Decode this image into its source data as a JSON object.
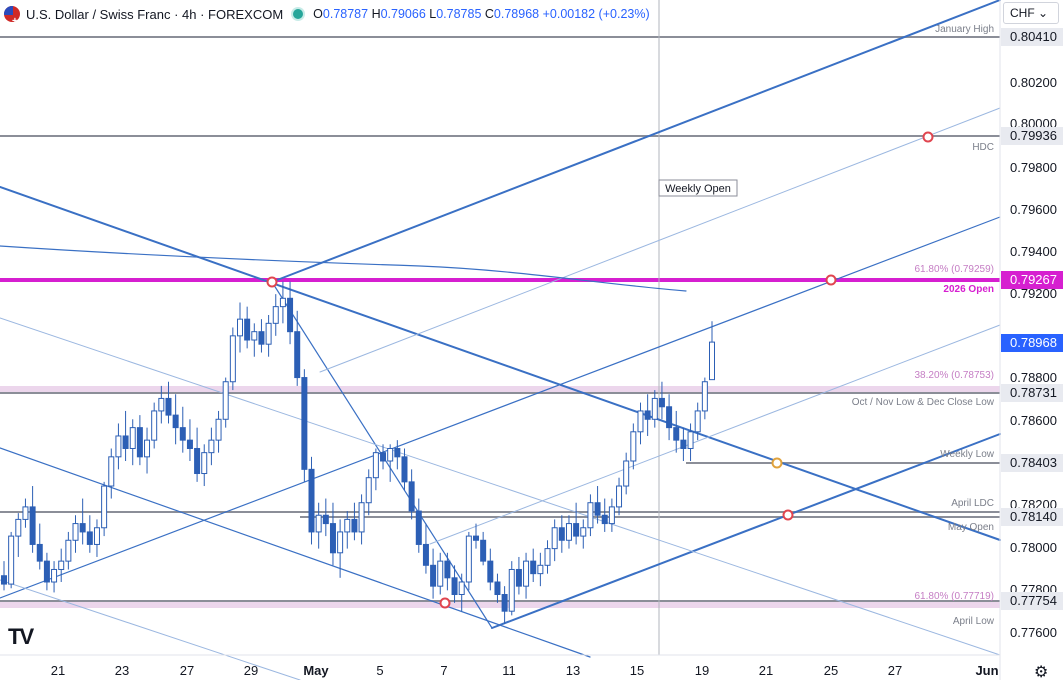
{
  "header": {
    "symbol": "U.S. Dollar / Swiss Franc · 4h · FOREXCOM",
    "ohlc": [
      {
        "k": "O",
        "v": "0.78787"
      },
      {
        "k": "H",
        "v": "0.79066"
      },
      {
        "k": "L",
        "v": "0.78785"
      },
      {
        "k": "C",
        "v": "0.78968"
      }
    ],
    "change": "+0.00182 (+0.23%)"
  },
  "currency_button": "CHF",
  "colors": {
    "candle": "#2c5fb5",
    "trend_line": "#3a70c4",
    "trend_line_light": "#9bb7e0",
    "level_line": "#8b8e98",
    "magenta": "#d61fd0",
    "fib_band": "#ecd6ec",
    "fib_text": "#c57ec4",
    "label_text": "#7b7f8a",
    "red_marker": "#e0454f",
    "orange_marker": "#e0a23c",
    "current_price_bg": "#2962ff"
  },
  "chart_data": {
    "type": "candlestick",
    "title": "U.S. Dollar / Swiss Franc · 4h · FOREXCOM",
    "y_axis_ticks": [
      "0.80200",
      "0.80000",
      "0.79800",
      "0.79600",
      "0.79400",
      "0.79200",
      "0.78800",
      "0.78600",
      "0.78200",
      "0.78000",
      "0.77800",
      "0.77600"
    ],
    "y_range": [
      0.7747,
      0.8061
    ],
    "x_axis_labels": [
      "21",
      "23",
      "27",
      "29",
      "May",
      "5",
      "7",
      "11",
      "13",
      "15",
      "19",
      "21",
      "25",
      "27",
      "Jun"
    ],
    "weekly_open_label": "Weekly Open",
    "levels": [
      {
        "name": "January High",
        "price": "0.80410",
        "style": "gray"
      },
      {
        "name": "HDC",
        "price": "0.79936",
        "style": "gray"
      },
      {
        "name": "2026 Open",
        "price": "0.79267",
        "style": "magenta"
      },
      {
        "name": "61.80% (0.79259)",
        "price": "",
        "style": "fib-text"
      },
      {
        "name": "38.20% (0.78753)",
        "price": "",
        "style": "fib-band"
      },
      {
        "name": "Oct / Nov Low & Dec Close Low",
        "price": "0.78731",
        "style": "gray"
      },
      {
        "name": "Weekly Low",
        "price": "0.78403",
        "style": "gray"
      },
      {
        "name": "April LDC",
        "price": "",
        "style": "gray"
      },
      {
        "name": "May Open",
        "price": "0.78140",
        "style": "gray"
      },
      {
        "name": "61.80% (0.77719)",
        "price": "",
        "style": "fib-band"
      },
      {
        "name": "April Low",
        "price": "0.77754",
        "style": "gray"
      }
    ],
    "current_price": "0.78968",
    "candles": [
      [
        0.7785,
        0.7792,
        0.7778,
        0.7781
      ],
      [
        0.7781,
        0.7806,
        0.7779,
        0.7804
      ],
      [
        0.7804,
        0.7815,
        0.7794,
        0.7812
      ],
      [
        0.7812,
        0.7822,
        0.7808,
        0.7818
      ],
      [
        0.7818,
        0.7828,
        0.7796,
        0.78
      ],
      [
        0.78,
        0.781,
        0.7788,
        0.7792
      ],
      [
        0.7792,
        0.7796,
        0.7778,
        0.7782
      ],
      [
        0.7782,
        0.7792,
        0.7777,
        0.7788
      ],
      [
        0.7788,
        0.7798,
        0.7782,
        0.7792
      ],
      [
        0.7792,
        0.7806,
        0.7788,
        0.7802
      ],
      [
        0.7802,
        0.7814,
        0.7796,
        0.781
      ],
      [
        0.781,
        0.7822,
        0.78,
        0.7806
      ],
      [
        0.7806,
        0.7814,
        0.7796,
        0.78
      ],
      [
        0.78,
        0.7812,
        0.7794,
        0.7808
      ],
      [
        0.7808,
        0.783,
        0.7804,
        0.7828
      ],
      [
        0.7828,
        0.7846,
        0.7822,
        0.7842
      ],
      [
        0.7842,
        0.7858,
        0.7836,
        0.7852
      ],
      [
        0.7852,
        0.7864,
        0.784,
        0.7846
      ],
      [
        0.7846,
        0.786,
        0.7838,
        0.7856
      ],
      [
        0.7856,
        0.7862,
        0.7838,
        0.7842
      ],
      [
        0.7842,
        0.7856,
        0.7834,
        0.785
      ],
      [
        0.785,
        0.7868,
        0.7846,
        0.7864
      ],
      [
        0.7864,
        0.7876,
        0.7858,
        0.787
      ],
      [
        0.787,
        0.7878,
        0.7858,
        0.7862
      ],
      [
        0.7862,
        0.7872,
        0.7848,
        0.7856
      ],
      [
        0.7856,
        0.7866,
        0.7844,
        0.785
      ],
      [
        0.785,
        0.786,
        0.784,
        0.7846
      ],
      [
        0.7846,
        0.7856,
        0.783,
        0.7834
      ],
      [
        0.7834,
        0.7848,
        0.7828,
        0.7844
      ],
      [
        0.7844,
        0.7856,
        0.7838,
        0.785
      ],
      [
        0.785,
        0.7864,
        0.7844,
        0.786
      ],
      [
        0.786,
        0.788,
        0.7856,
        0.7878
      ],
      [
        0.7878,
        0.7904,
        0.7874,
        0.79
      ],
      [
        0.79,
        0.7916,
        0.7892,
        0.7908
      ],
      [
        0.7908,
        0.7914,
        0.7894,
        0.7898
      ],
      [
        0.7898,
        0.7906,
        0.789,
        0.7902
      ],
      [
        0.7902,
        0.7908,
        0.7892,
        0.7896
      ],
      [
        0.7896,
        0.791,
        0.789,
        0.7906
      ],
      [
        0.7906,
        0.792,
        0.79,
        0.7914
      ],
      [
        0.7914,
        0.7926,
        0.7906,
        0.7918
      ],
      [
        0.7918,
        0.7926,
        0.7896,
        0.7902
      ],
      [
        0.7902,
        0.7912,
        0.7876,
        0.788
      ],
      [
        0.788,
        0.7884,
        0.783,
        0.7836
      ],
      [
        0.7836,
        0.7842,
        0.78,
        0.7806
      ],
      [
        0.7806,
        0.782,
        0.7798,
        0.7814
      ],
      [
        0.7814,
        0.7822,
        0.7804,
        0.781
      ],
      [
        0.781,
        0.782,
        0.779,
        0.7796
      ],
      [
        0.7796,
        0.7812,
        0.7784,
        0.7806
      ],
      [
        0.7806,
        0.7816,
        0.7798,
        0.7812
      ],
      [
        0.7812,
        0.782,
        0.7802,
        0.7806
      ],
      [
        0.7806,
        0.7824,
        0.78,
        0.782
      ],
      [
        0.782,
        0.7836,
        0.7814,
        0.7832
      ],
      [
        0.7832,
        0.7846,
        0.7826,
        0.7844
      ],
      [
        0.7844,
        0.7848,
        0.7836,
        0.784
      ],
      [
        0.784,
        0.7848,
        0.783,
        0.7846
      ],
      [
        0.7846,
        0.785,
        0.7836,
        0.7842
      ],
      [
        0.7842,
        0.7846,
        0.7826,
        0.783
      ],
      [
        0.783,
        0.7836,
        0.7812,
        0.7816
      ],
      [
        0.7816,
        0.7822,
        0.7796,
        0.78
      ],
      [
        0.78,
        0.781,
        0.7786,
        0.779
      ],
      [
        0.779,
        0.7798,
        0.7774,
        0.778
      ],
      [
        0.778,
        0.7796,
        0.7776,
        0.7792
      ],
      [
        0.7792,
        0.7796,
        0.7778,
        0.7784
      ],
      [
        0.7784,
        0.779,
        0.7772,
        0.7776
      ],
      [
        0.7776,
        0.7786,
        0.7768,
        0.7782
      ],
      [
        0.7782,
        0.7806,
        0.7778,
        0.7804
      ],
      [
        0.7804,
        0.781,
        0.7798,
        0.7802
      ],
      [
        0.7802,
        0.7806,
        0.779,
        0.7792
      ],
      [
        0.7792,
        0.7798,
        0.7778,
        0.7782
      ],
      [
        0.7782,
        0.7786,
        0.7772,
        0.7776
      ],
      [
        0.7776,
        0.778,
        0.7762,
        0.7768
      ],
      [
        0.7768,
        0.7792,
        0.7766,
        0.7788
      ],
      [
        0.7788,
        0.7794,
        0.7776,
        0.778
      ],
      [
        0.778,
        0.7796,
        0.7774,
        0.7792
      ],
      [
        0.7792,
        0.7798,
        0.7782,
        0.7786
      ],
      [
        0.7786,
        0.7796,
        0.778,
        0.779
      ],
      [
        0.779,
        0.7802,
        0.7786,
        0.7798
      ],
      [
        0.7798,
        0.7812,
        0.7792,
        0.7808
      ],
      [
        0.7808,
        0.7814,
        0.7796,
        0.7802
      ],
      [
        0.7802,
        0.7814,
        0.7798,
        0.781
      ],
      [
        0.781,
        0.782,
        0.78,
        0.7804
      ],
      [
        0.7804,
        0.7812,
        0.7798,
        0.7808
      ],
      [
        0.7808,
        0.7824,
        0.7804,
        0.782
      ],
      [
        0.782,
        0.7828,
        0.781,
        0.7814
      ],
      [
        0.7814,
        0.7822,
        0.7806,
        0.781
      ],
      [
        0.781,
        0.7822,
        0.7806,
        0.7818
      ],
      [
        0.7818,
        0.7832,
        0.7814,
        0.7828
      ],
      [
        0.7828,
        0.7844,
        0.7824,
        0.784
      ],
      [
        0.784,
        0.7858,
        0.7836,
        0.7854
      ],
      [
        0.7854,
        0.7868,
        0.7848,
        0.7864
      ],
      [
        0.7864,
        0.7872,
        0.7852,
        0.786
      ],
      [
        0.786,
        0.7874,
        0.7856,
        0.787
      ],
      [
        0.787,
        0.7878,
        0.786,
        0.7866
      ],
      [
        0.7866,
        0.7872,
        0.785,
        0.7856
      ],
      [
        0.7856,
        0.7864,
        0.7844,
        0.785
      ],
      [
        0.785,
        0.7856,
        0.784,
        0.7846
      ],
      [
        0.7846,
        0.7858,
        0.784,
        0.7854
      ],
      [
        0.7854,
        0.7868,
        0.785,
        0.7864
      ],
      [
        0.7864,
        0.788,
        0.786,
        0.7878
      ],
      [
        0.7879,
        0.7907,
        0.7879,
        0.7897
      ]
    ]
  },
  "price_axis_labels": {
    "jan_high": "0.80410",
    "hdc": "0.79936",
    "open_2026": "0.79267",
    "current": "0.78968",
    "oct_nov": "0.78731",
    "weekly_low": "0.78403",
    "may_open": "0.78140",
    "april_low": "0.77754"
  },
  "logo": "TV",
  "settings_icon": "gear-icon"
}
